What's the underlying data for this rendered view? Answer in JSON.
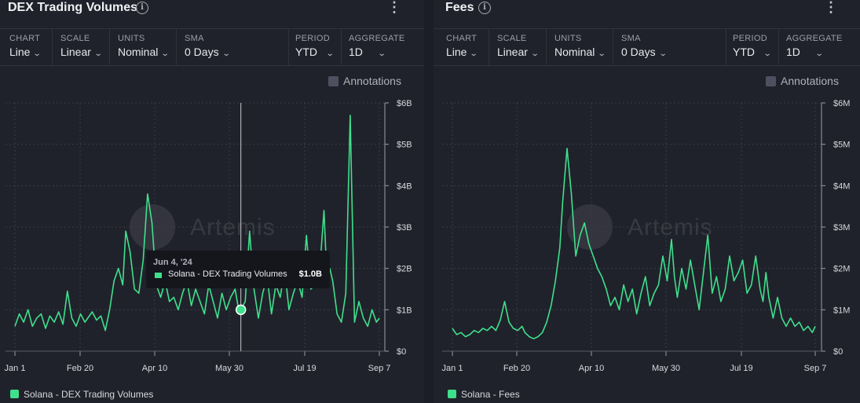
{
  "panels": [
    {
      "title": "DEX Trading Volumes",
      "controls": {
        "chart": {
          "label": "CHART",
          "value": "Line"
        },
        "scale": {
          "label": "SCALE",
          "value": "Linear"
        },
        "units": {
          "label": "UNITS",
          "value": "Nominal"
        },
        "sma": {
          "label": "SMA",
          "value": "0 Days"
        },
        "period": {
          "label": "PERIOD",
          "value": "YTD"
        },
        "aggregate": {
          "label": "AGGREGATE",
          "value": "1D"
        }
      },
      "annotations_label": "Annotations",
      "legend": "Solana - DEX Trading Volumes",
      "watermark": "Artemis",
      "tooltip": {
        "date": "Jun 4, '24",
        "series": "Solana - DEX Trading Volumes",
        "value": "$1.0B"
      }
    },
    {
      "title": "Fees",
      "controls": {
        "chart": {
          "label": "CHART",
          "value": "Line"
        },
        "scale": {
          "label": "SCALE",
          "value": "Linear"
        },
        "units": {
          "label": "UNITS",
          "value": "Nominal"
        },
        "sma": {
          "label": "SMA",
          "value": "0 Days"
        },
        "period": {
          "label": "PERIOD",
          "value": "YTD"
        },
        "aggregate": {
          "label": "AGGREGATE",
          "value": "1D"
        }
      },
      "annotations_label": "Annotations",
      "legend": "Solana - Fees",
      "watermark": "Artemis"
    }
  ],
  "colors": {
    "series": "#3fe08c",
    "background": "#20222b",
    "grid": "#3a3c46"
  },
  "chart_data": [
    {
      "type": "line",
      "x_tick_labels": [
        "Jan 1",
        "Feb 20",
        "Apr 10",
        "May 30",
        "Jul 19",
        "Sep 7"
      ],
      "y_tick_labels": [
        "$0",
        "$1B",
        "$2B",
        "$3B",
        "$4B",
        "$5B",
        "$6B"
      ],
      "y_unit": "USD billions",
      "ylim": [
        0,
        6
      ],
      "x_range_days": [
        0,
        250
      ],
      "grid": true,
      "highlight": {
        "day": 155,
        "value": 1.0
      },
      "series": [
        {
          "name": "Solana - DEX Trading Volumes",
          "x": [
            0,
            3,
            6,
            9,
            12,
            15,
            18,
            21,
            24,
            27,
            30,
            33,
            36,
            39,
            42,
            45,
            48,
            50,
            53,
            56,
            59,
            62,
            65,
            68,
            71,
            74,
            76,
            79,
            82,
            85,
            88,
            91,
            94,
            97,
            100,
            103,
            106,
            109,
            112,
            115,
            118,
            121,
            124,
            127,
            130,
            133,
            136,
            139,
            142,
            145,
            148,
            151,
            153,
            155,
            158,
            161,
            164,
            167,
            170,
            173,
            176,
            179,
            182,
            185,
            188,
            191,
            194,
            197,
            200,
            203,
            206,
            209,
            212,
            214,
            216,
            218,
            221,
            224,
            227,
            230,
            233,
            236,
            239,
            242,
            245,
            248,
            250
          ],
          "values": [
            0.6,
            0.9,
            0.7,
            1.0,
            0.6,
            0.8,
            0.9,
            0.55,
            0.85,
            0.7,
            0.95,
            0.65,
            1.45,
            0.8,
            0.6,
            0.9,
            0.7,
            0.8,
            0.95,
            0.75,
            0.85,
            0.5,
            1.0,
            1.7,
            2.0,
            1.6,
            2.9,
            2.4,
            1.5,
            1.4,
            2.2,
            3.8,
            3.1,
            1.6,
            1.3,
            1.7,
            1.2,
            1.3,
            1.0,
            1.4,
            1.7,
            1.1,
            1.5,
            1.2,
            0.9,
            1.6,
            1.2,
            0.8,
            1.4,
            1.0,
            1.3,
            1.5,
            1.1,
            1.0,
            1.2,
            2.9,
            1.5,
            0.8,
            1.4,
            1.8,
            0.9,
            1.6,
            1.3,
            2.0,
            1.0,
            1.4,
            1.7,
            1.3,
            2.8,
            1.5,
            1.6,
            1.9,
            3.4,
            1.8,
            2.0,
            1.7,
            0.9,
            0.7,
            1.4,
            5.7,
            0.7,
            1.2,
            0.8,
            0.6,
            1.0,
            0.7,
            0.8
          ]
        }
      ]
    },
    {
      "type": "line",
      "x_tick_labels": [
        "Jan 1",
        "Feb 20",
        "Apr 10",
        "May 30",
        "Jul 19",
        "Sep 7"
      ],
      "y_tick_labels": [
        "$0",
        "$1M",
        "$2M",
        "$3M",
        "$4M",
        "$5M",
        "$6M"
      ],
      "y_unit": "USD millions",
      "ylim": [
        0,
        6
      ],
      "x_range_days": [
        0,
        250
      ],
      "grid": true,
      "series": [
        {
          "name": "Solana - Fees",
          "x": [
            0,
            3,
            6,
            9,
            12,
            15,
            18,
            21,
            24,
            27,
            30,
            33,
            36,
            39,
            42,
            45,
            48,
            50,
            53,
            56,
            59,
            62,
            65,
            68,
            71,
            74,
            76,
            79,
            82,
            85,
            88,
            91,
            94,
            97,
            100,
            103,
            106,
            109,
            112,
            115,
            118,
            121,
            124,
            127,
            130,
            133,
            136,
            139,
            142,
            145,
            148,
            151,
            153,
            155,
            158,
            161,
            164,
            167,
            170,
            173,
            176,
            179,
            182,
            185,
            188,
            191,
            194,
            197,
            200,
            203,
            206,
            209,
            212,
            214,
            216,
            218,
            221,
            224,
            227,
            230,
            233,
            236,
            239,
            242,
            245,
            248,
            250
          ],
          "values": [
            0.55,
            0.4,
            0.45,
            0.35,
            0.4,
            0.5,
            0.45,
            0.55,
            0.5,
            0.6,
            0.5,
            0.75,
            1.2,
            0.7,
            0.55,
            0.5,
            0.6,
            0.45,
            0.35,
            0.3,
            0.35,
            0.45,
            0.7,
            1.1,
            1.7,
            2.5,
            3.6,
            4.9,
            3.8,
            2.3,
            2.8,
            3.1,
            2.6,
            2.3,
            2.0,
            1.8,
            1.5,
            1.1,
            1.3,
            1.0,
            1.6,
            1.2,
            1.5,
            0.9,
            1.4,
            1.8,
            1.1,
            1.4,
            1.6,
            2.3,
            1.7,
            2.7,
            1.8,
            1.3,
            2.0,
            1.5,
            2.2,
            1.6,
            1.0,
            1.9,
            2.8,
            1.4,
            1.8,
            1.2,
            1.5,
            2.3,
            1.7,
            1.9,
            2.2,
            1.4,
            1.6,
            2.3,
            1.5,
            1.2,
            1.9,
            1.3,
            0.8,
            1.3,
            0.8,
            0.6,
            0.8,
            0.6,
            0.7,
            0.5,
            0.6,
            0.45,
            0.6
          ]
        }
      ]
    }
  ]
}
